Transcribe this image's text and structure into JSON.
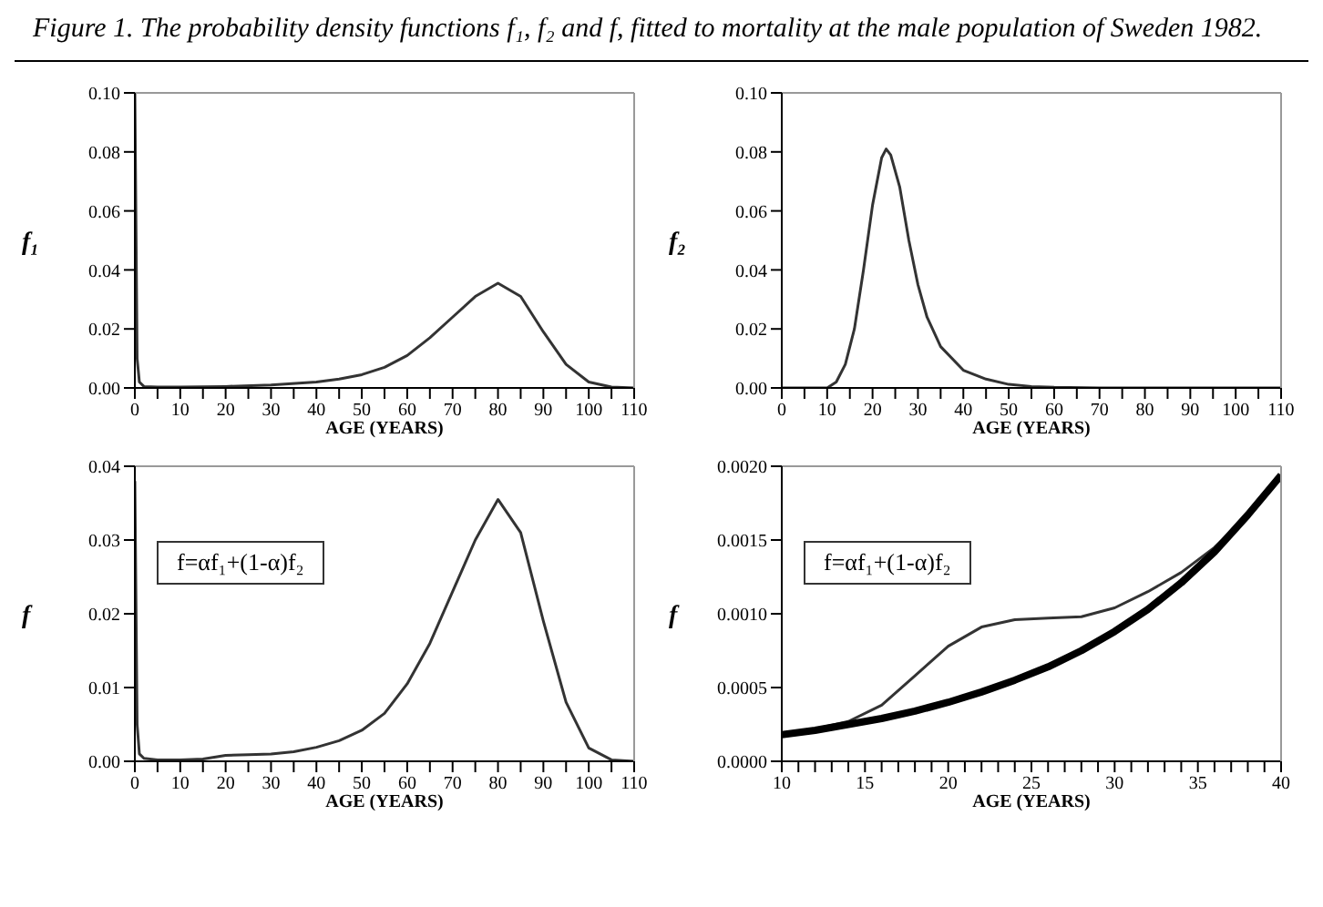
{
  "chart_data": [
    {
      "type": "line",
      "title": "Figure 1. The probability density functions f₁, f₂ and f, fitted to mortality at the male population of Sweden 1982.",
      "xlabel": "AGE (YEARS)",
      "ylabel": "f₁",
      "legend": false,
      "grid": false,
      "marker": "none",
      "line_style": "solid",
      "xlim": [
        0,
        110
      ],
      "ylim": [
        0,
        0.1
      ],
      "xticks": [
        0,
        {
          "value": 5,
          "label": null
        },
        10,
        {
          "value": 15,
          "label": null
        },
        20,
        {
          "value": 25,
          "label": null
        },
        30,
        {
          "value": 35,
          "label": null
        },
        40,
        {
          "value": 45,
          "label": null
        },
        50,
        {
          "value": 55,
          "label": null
        },
        60,
        {
          "value": 65,
          "label": null
        },
        70,
        {
          "value": 75,
          "label": null
        },
        80,
        {
          "value": 85,
          "label": null
        },
        90,
        {
          "value": 95,
          "label": null
        },
        100,
        {
          "value": 105,
          "label": null
        },
        110
      ],
      "yticks": [
        {
          "value": 0,
          "label": "0.00"
        },
        {
          "value": 0.02,
          "label": "0.02"
        },
        {
          "value": 0.04,
          "label": "0.04"
        },
        {
          "value": 0.06,
          "label": "0.06"
        },
        {
          "value": 0.08,
          "label": "0.08"
        },
        {
          "value": 0.1,
          "label": "0.10"
        }
      ],
      "series": [
        {
          "color": "#333333",
          "x": [
            0,
            0.5,
            1,
            2,
            5,
            10,
            20,
            30,
            40,
            45,
            50,
            55,
            60,
            65,
            70,
            75,
            80,
            85,
            90,
            95,
            100,
            105,
            110
          ],
          "values": [
            0.1,
            0.01,
            0.002,
            0.0005,
            0.0003,
            0.0003,
            0.0005,
            0.001,
            0.002,
            0.003,
            0.0045,
            0.007,
            0.011,
            0.017,
            0.024,
            0.031,
            0.0355,
            0.031,
            0.019,
            0.008,
            0.002,
            0.0003,
            0
          ]
        }
      ]
    },
    {
      "type": "line",
      "xlabel": "AGE (YEARS)",
      "ylabel": "f₂",
      "legend": false,
      "grid": false,
      "marker": "none",
      "line_style": "solid",
      "xlim": [
        0,
        110
      ],
      "ylim": [
        0,
        0.1
      ],
      "xticks": [
        0,
        {
          "value": 5,
          "label": null
        },
        10,
        {
          "value": 15,
          "label": null
        },
        20,
        {
          "value": 25,
          "label": null
        },
        30,
        {
          "value": 35,
          "label": null
        },
        40,
        {
          "value": 45,
          "label": null
        },
        50,
        {
          "value": 55,
          "label": null
        },
        60,
        {
          "value": 65,
          "label": null
        },
        70,
        {
          "value": 75,
          "label": null
        },
        80,
        {
          "value": 85,
          "label": null
        },
        90,
        {
          "value": 95,
          "label": null
        },
        100,
        {
          "value": 105,
          "label": null
        },
        110
      ],
      "yticks": [
        {
          "value": 0,
          "label": "0.00"
        },
        {
          "value": 0.02,
          "label": "0.02"
        },
        {
          "value": 0.04,
          "label": "0.04"
        },
        {
          "value": 0.06,
          "label": "0.06"
        },
        {
          "value": 0.08,
          "label": "0.08"
        },
        {
          "value": 0.1,
          "label": "0.10"
        }
      ],
      "series": [
        {
          "color": "#333333",
          "x": [
            0,
            10,
            12,
            14,
            16,
            18,
            20,
            22,
            23,
            24,
            26,
            28,
            30,
            32,
            35,
            40,
            45,
            50,
            55,
            60,
            70,
            110
          ],
          "values": [
            0,
            0,
            0.002,
            0.008,
            0.02,
            0.04,
            0.062,
            0.078,
            0.081,
            0.079,
            0.068,
            0.05,
            0.035,
            0.024,
            0.014,
            0.006,
            0.003,
            0.0012,
            0.0005,
            0.0002,
            0,
            0
          ]
        }
      ]
    },
    {
      "type": "line",
      "xlabel": "AGE (YEARS)",
      "ylabel": "f",
      "annotations": [
        "f=αf₁+(1-α)f₂"
      ],
      "legend": false,
      "grid": false,
      "marker": "none",
      "line_style": "solid",
      "xlim": [
        0,
        110
      ],
      "ylim": [
        0,
        0.04
      ],
      "xticks": [
        0,
        {
          "value": 5,
          "label": null
        },
        10,
        {
          "value": 15,
          "label": null
        },
        20,
        {
          "value": 25,
          "label": null
        },
        30,
        {
          "value": 35,
          "label": null
        },
        40,
        {
          "value": 45,
          "label": null
        },
        50,
        {
          "value": 55,
          "label": null
        },
        60,
        {
          "value": 65,
          "label": null
        },
        70,
        {
          "value": 75,
          "label": null
        },
        80,
        {
          "value": 85,
          "label": null
        },
        90,
        {
          "value": 95,
          "label": null
        },
        100,
        {
          "value": 105,
          "label": null
        },
        110
      ],
      "yticks": [
        {
          "value": 0,
          "label": "0.00"
        },
        {
          "value": 0.01,
          "label": "0.01"
        },
        {
          "value": 0.02,
          "label": "0.02"
        },
        {
          "value": 0.03,
          "label": "0.03"
        },
        {
          "value": 0.04,
          "label": "0.04"
        }
      ],
      "series": [
        {
          "color": "#333333",
          "x": [
            0,
            0.5,
            1,
            2,
            5,
            10,
            15,
            20,
            25,
            30,
            35,
            40,
            45,
            50,
            55,
            60,
            65,
            70,
            75,
            80,
            85,
            90,
            95,
            100,
            105,
            110
          ],
          "values": [
            0.038,
            0.005,
            0.001,
            0.0004,
            0.0002,
            0.0002,
            0.0003,
            0.0008,
            0.0009,
            0.001,
            0.0013,
            0.0019,
            0.0028,
            0.0042,
            0.0065,
            0.0105,
            0.016,
            0.023,
            0.03,
            0.0355,
            0.031,
            0.019,
            0.008,
            0.0018,
            0.0002,
            0
          ]
        }
      ]
    },
    {
      "type": "line",
      "xlabel": "AGE (YEARS)",
      "ylabel": "f",
      "annotations": [
        "f=αf₁+(1-α)f₂"
      ],
      "legend": false,
      "grid": false,
      "marker": "none",
      "line_style": "solid",
      "xlim": [
        10,
        40
      ],
      "ylim": [
        0,
        0.002
      ],
      "xticks": [
        10,
        {
          "value": 11,
          "label": null
        },
        {
          "value": 12,
          "label": null
        },
        {
          "value": 13,
          "label": null
        },
        {
          "value": 14,
          "label": null
        },
        15,
        {
          "value": 16,
          "label": null
        },
        {
          "value": 17,
          "label": null
        },
        {
          "value": 18,
          "label": null
        },
        {
          "value": 19,
          "label": null
        },
        20,
        {
          "value": 21,
          "label": null
        },
        {
          "value": 22,
          "label": null
        },
        {
          "value": 23,
          "label": null
        },
        {
          "value": 24,
          "label": null
        },
        25,
        {
          "value": 26,
          "label": null
        },
        {
          "value": 27,
          "label": null
        },
        {
          "value": 28,
          "label": null
        },
        {
          "value": 29,
          "label": null
        },
        30,
        {
          "value": 31,
          "label": null
        },
        {
          "value": 32,
          "label": null
        },
        {
          "value": 33,
          "label": null
        },
        {
          "value": 34,
          "label": null
        },
        35,
        {
          "value": 36,
          "label": null
        },
        {
          "value": 37,
          "label": null
        },
        {
          "value": 38,
          "label": null
        },
        {
          "value": 39,
          "label": null
        },
        40
      ],
      "yticks": [
        {
          "value": 0,
          "label": "0.0000"
        },
        {
          "value": 0.0005,
          "label": "0.0005"
        },
        {
          "value": 0.001,
          "label": "0.0010"
        },
        {
          "value": 0.0015,
          "label": "0.0015"
        },
        {
          "value": 0.002,
          "label": "0.0020"
        }
      ],
      "series": [
        {
          "color": "#333333",
          "x": [
            10,
            12,
            14,
            16,
            18,
            20,
            22,
            24,
            26,
            28,
            30,
            32,
            34,
            36,
            38,
            40
          ],
          "values": [
            0.00018,
            0.00022,
            0.00027,
            0.00038,
            0.00058,
            0.00078,
            0.00091,
            0.00096,
            0.00097,
            0.00098,
            0.00104,
            0.00115,
            0.00128,
            0.00145,
            0.00167,
            0.00194
          ]
        },
        {
          "color": "#000000",
          "x": [
            10,
            12,
            14,
            16,
            18,
            20,
            22,
            24,
            26,
            28,
            30,
            32,
            34,
            36,
            38,
            40
          ],
          "values": [
            0.00018,
            0.00021,
            0.00025,
            0.00029,
            0.00034,
            0.0004,
            0.00047,
            0.00055,
            0.00064,
            0.00075,
            0.00088,
            0.00103,
            0.00121,
            0.00142,
            0.00167,
            0.00194
          ]
        }
      ]
    }
  ]
}
